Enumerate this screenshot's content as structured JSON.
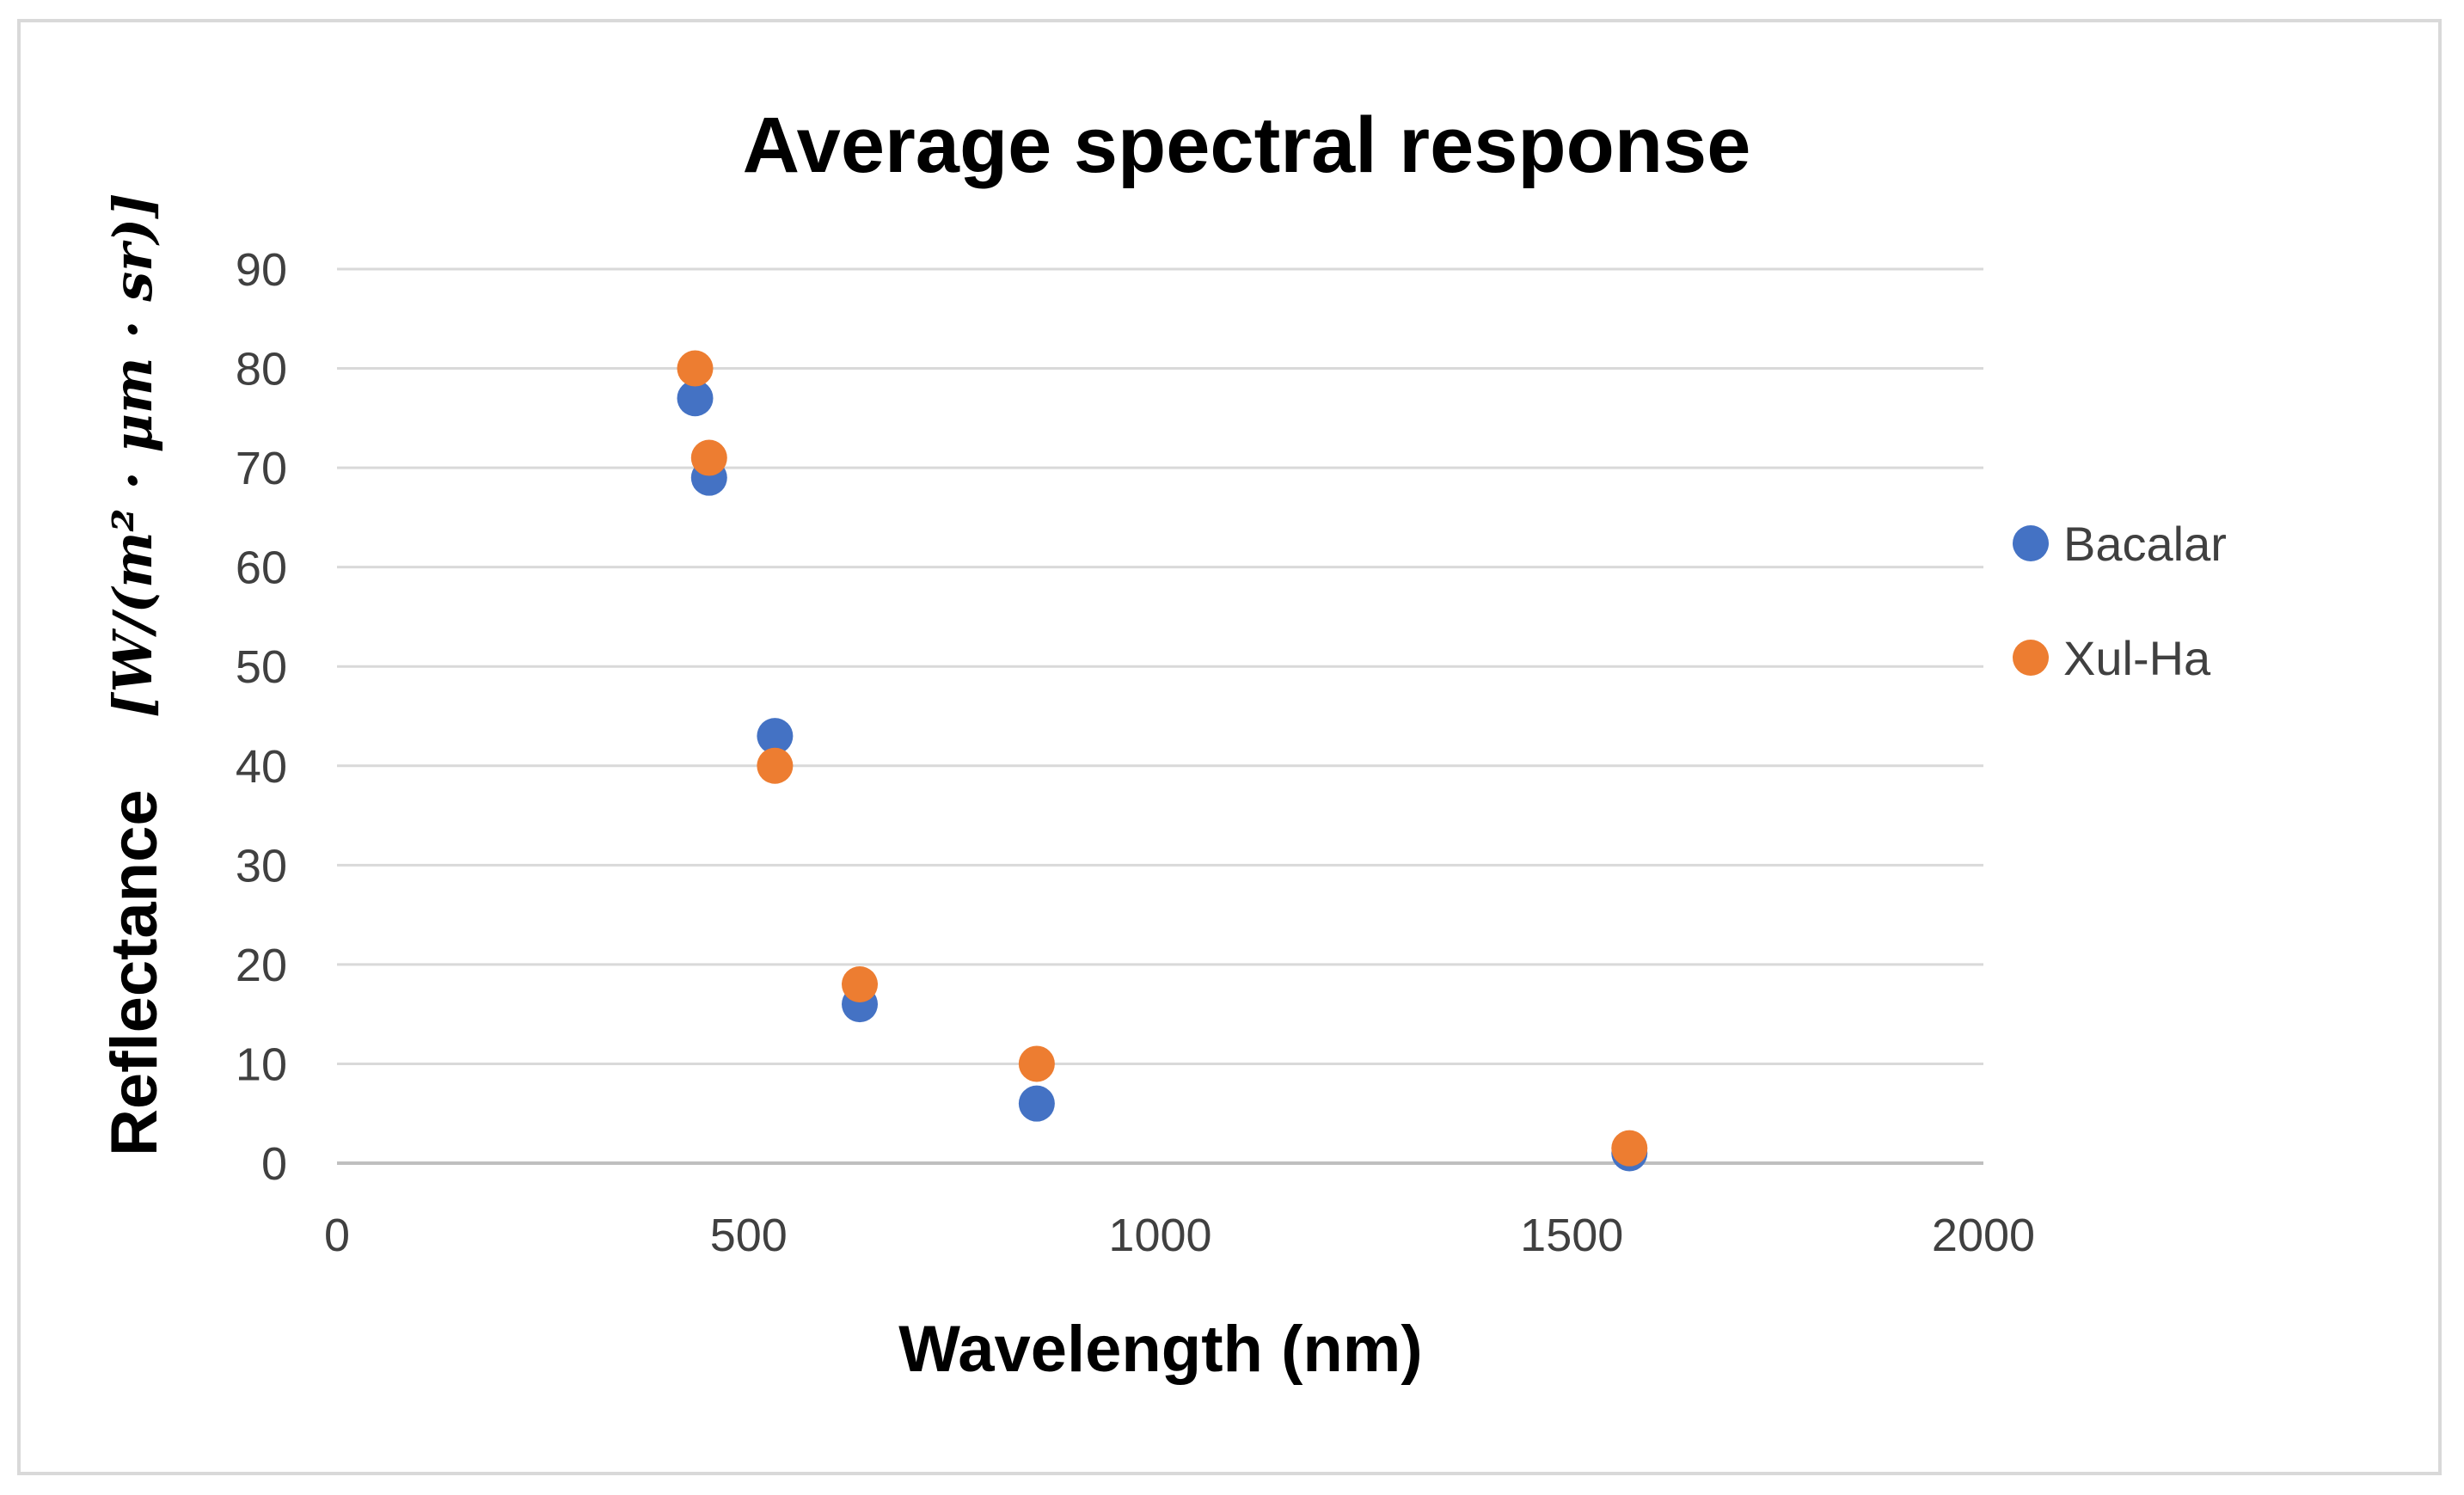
{
  "chart_data": {
    "type": "scatter",
    "title": "Average spectral response",
    "xlabel": "Wavelength (nm)",
    "ylabel": "Reflectance",
    "ylabel_units": "[W/(m² · μm · sr)]",
    "xlim": [
      0,
      2000
    ],
    "ylim": [
      0,
      90
    ],
    "x_ticks": [
      "0",
      "500",
      "1000",
      "1500",
      "2000"
    ],
    "y_ticks": [
      "0",
      "10",
      "20",
      "30",
      "40",
      "50",
      "60",
      "70",
      "80",
      "90"
    ],
    "grid": "horizontal",
    "legend_position": "right",
    "series": [
      {
        "name": "Bacalar",
        "color": "#4472C4",
        "points": [
          {
            "x": 435,
            "y": 77
          },
          {
            "x": 452,
            "y": 69
          },
          {
            "x": 532,
            "y": 43
          },
          {
            "x": 635,
            "y": 16
          },
          {
            "x": 850,
            "y": 6
          },
          {
            "x": 1570,
            "y": 1
          }
        ]
      },
      {
        "name": "Xul-Ha",
        "color": "#ED7D31",
        "points": [
          {
            "x": 435,
            "y": 80
          },
          {
            "x": 452,
            "y": 71
          },
          {
            "x": 532,
            "y": 40
          },
          {
            "x": 635,
            "y": 18
          },
          {
            "x": 850,
            "y": 10
          },
          {
            "x": 1570,
            "y": 1.5
          }
        ]
      }
    ]
  }
}
